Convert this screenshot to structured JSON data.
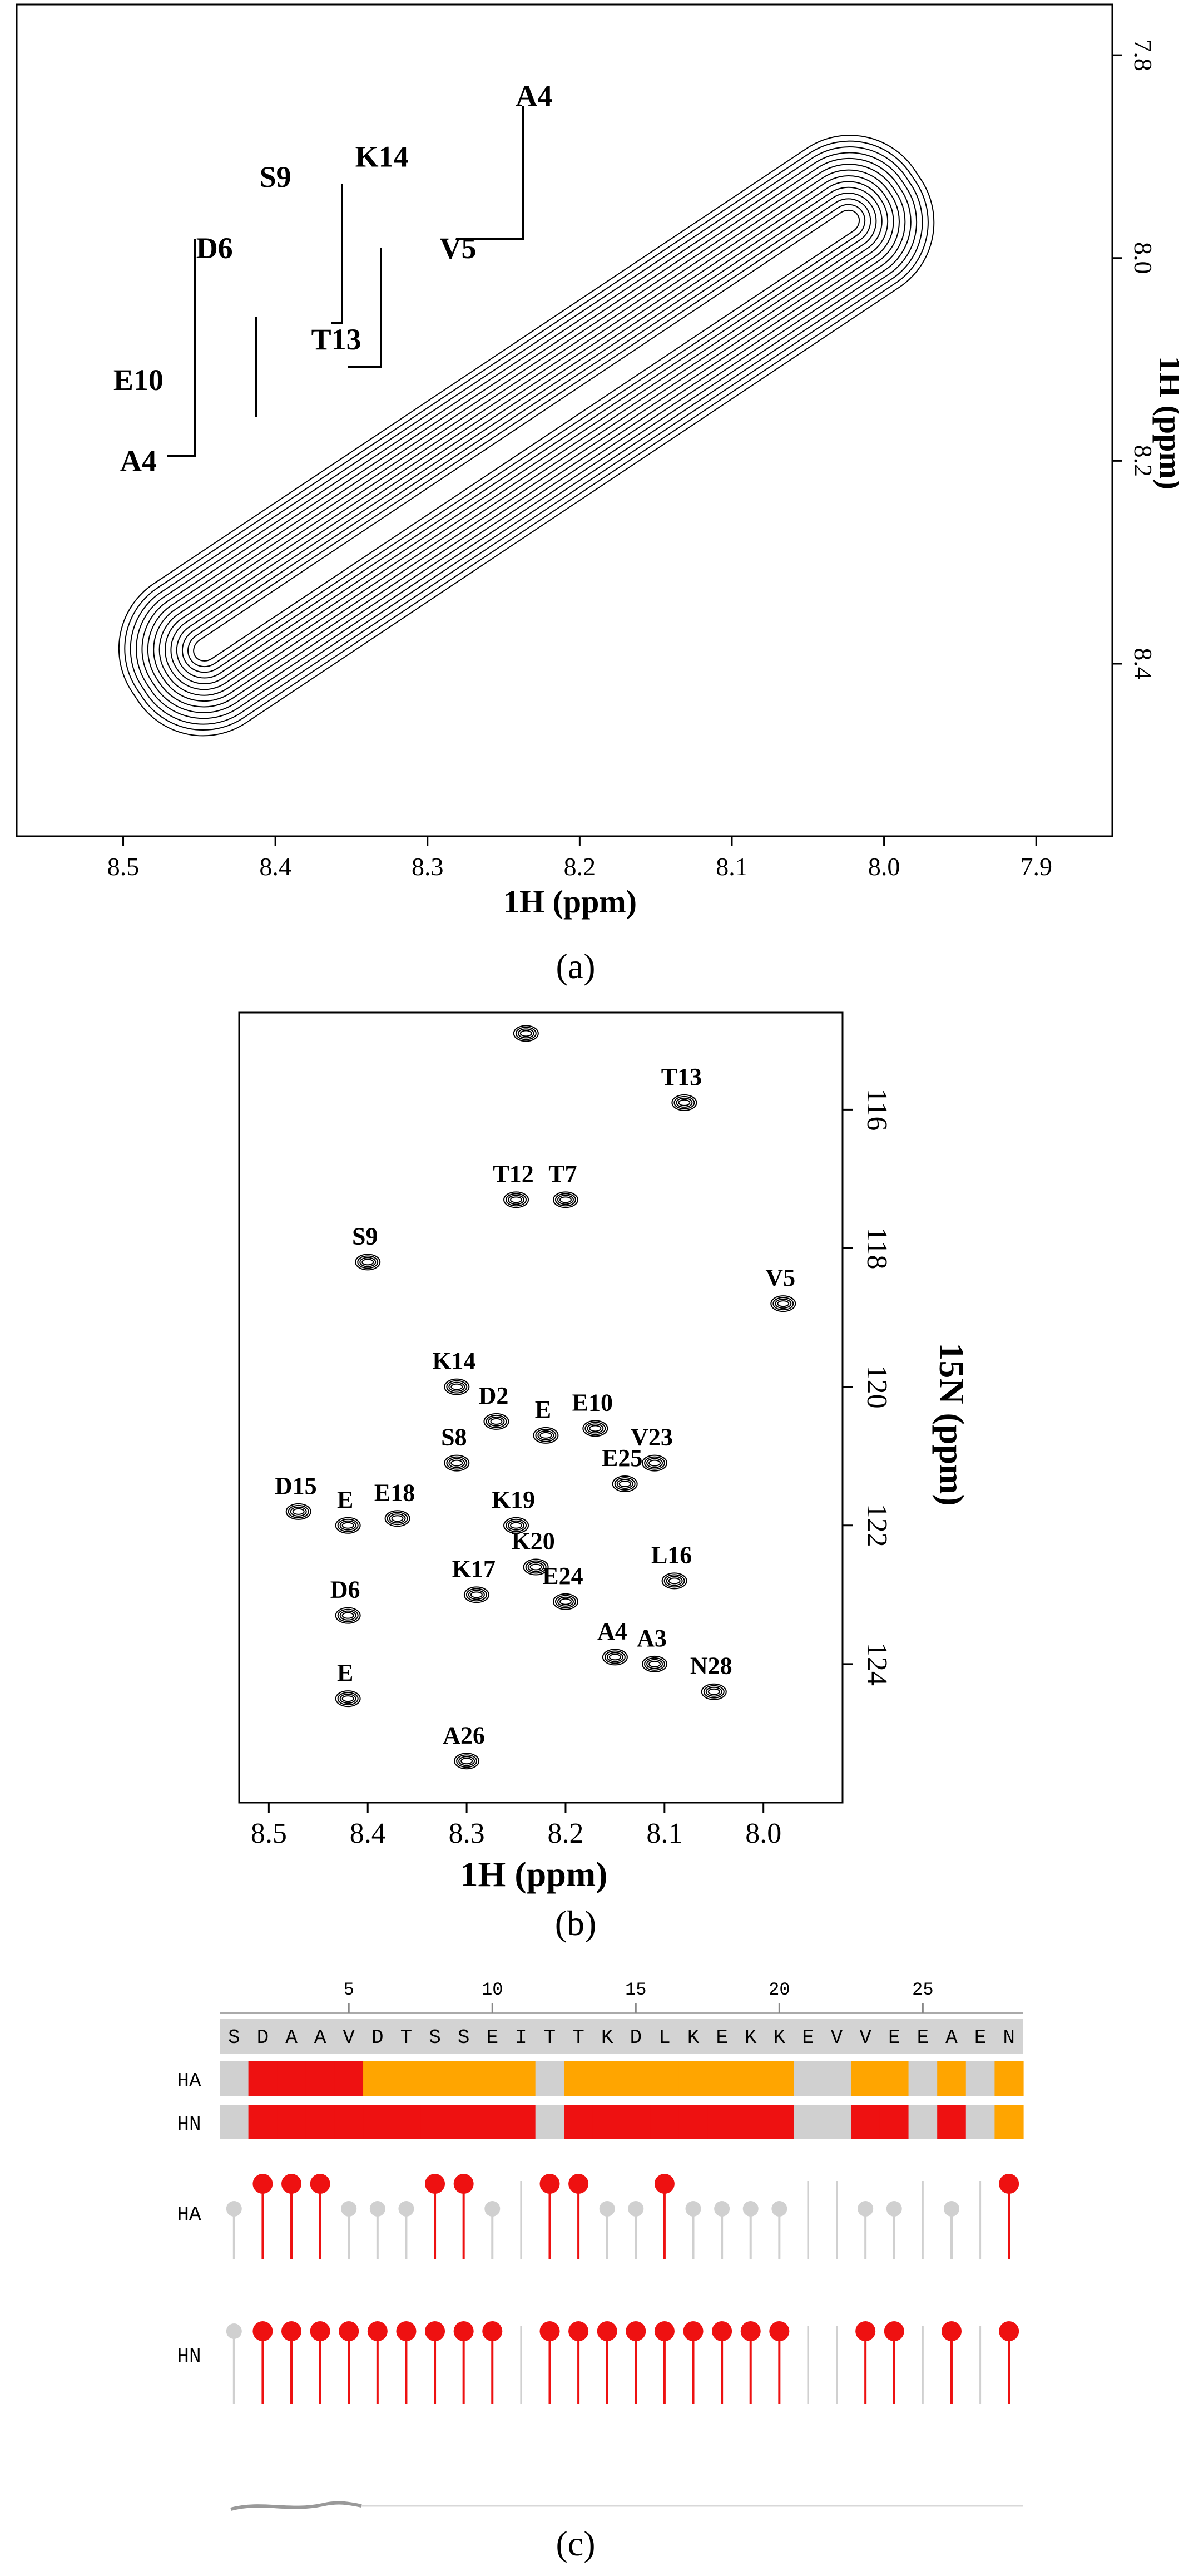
{
  "panel_a": {
    "xlabel": "1H (ppm)",
    "ylabel": "1H (ppm)",
    "x_ticks": [
      8.5,
      8.4,
      8.3,
      8.2,
      8.1,
      8.0,
      7.9
    ],
    "y_ticks": [
      7.8,
      8.0,
      8.2,
      8.4
    ],
    "x_range": [
      8.57,
      7.85
    ],
    "y_range": [
      7.75,
      8.57
    ],
    "labels": [
      {
        "text": "A4",
        "x": 8.23,
        "y": 7.85
      },
      {
        "text": "V5",
        "x": 8.28,
        "y": 8.0
      },
      {
        "text": "K14",
        "x": 8.33,
        "y": 7.91
      },
      {
        "text": "T13",
        "x": 8.36,
        "y": 8.09
      },
      {
        "text": "S9",
        "x": 8.4,
        "y": 7.93
      },
      {
        "text": "D6",
        "x": 8.44,
        "y": 8.0
      },
      {
        "text": "E10",
        "x": 8.49,
        "y": 8.13
      },
      {
        "text": "A4",
        "x": 8.49,
        "y": 8.21
      }
    ],
    "caption": "(a)"
  },
  "panel_b": {
    "xlabel": "1H (ppm)",
    "ylabel": "15N (ppm)",
    "x_ticks": [
      8.5,
      8.4,
      8.3,
      8.2,
      8.1,
      8.0
    ],
    "y_ticks": [
      116,
      118,
      120,
      122,
      124
    ],
    "x_range": [
      8.53,
      7.92
    ],
    "y_range": [
      114.6,
      126.0
    ],
    "peaks": [
      {
        "label": "",
        "x": 8.24,
        "y": 114.9
      },
      {
        "label": "T13",
        "x": 8.08,
        "y": 115.9
      },
      {
        "label": "T12",
        "x": 8.25,
        "y": 117.3
      },
      {
        "label": "T7",
        "x": 8.2,
        "y": 117.3
      },
      {
        "label": "S9",
        "x": 8.4,
        "y": 118.2
      },
      {
        "label": "V5",
        "x": 7.98,
        "y": 118.8
      },
      {
        "label": "K14",
        "x": 8.31,
        "y": 120.0
      },
      {
        "label": "D2",
        "x": 8.27,
        "y": 120.5
      },
      {
        "label": "E",
        "x": 8.22,
        "y": 120.7
      },
      {
        "label": "E10",
        "x": 8.17,
        "y": 120.6
      },
      {
        "label": "E25",
        "x": 8.14,
        "y": 121.4
      },
      {
        "label": "V23",
        "x": 8.11,
        "y": 121.1
      },
      {
        "label": "S8",
        "x": 8.31,
        "y": 121.1
      },
      {
        "label": "D15",
        "x": 8.47,
        "y": 121.8
      },
      {
        "label": "E",
        "x": 8.42,
        "y": 122.0
      },
      {
        "label": "E18",
        "x": 8.37,
        "y": 121.9
      },
      {
        "label": "K19",
        "x": 8.25,
        "y": 122.0
      },
      {
        "label": "K20",
        "x": 8.23,
        "y": 122.6
      },
      {
        "label": "L16",
        "x": 8.09,
        "y": 122.8
      },
      {
        "label": "K17",
        "x": 8.29,
        "y": 123.0
      },
      {
        "label": "E24",
        "x": 8.2,
        "y": 123.1
      },
      {
        "label": "D6",
        "x": 8.42,
        "y": 123.3
      },
      {
        "label": "A4",
        "x": 8.15,
        "y": 123.9
      },
      {
        "label": "A3",
        "x": 8.11,
        "y": 124.0
      },
      {
        "label": "N28",
        "x": 8.05,
        "y": 124.4
      },
      {
        "label": "E",
        "x": 8.42,
        "y": 124.5
      },
      {
        "label": "A26",
        "x": 8.3,
        "y": 125.4
      }
    ],
    "caption": "(b)"
  },
  "panel_c": {
    "sequence": [
      "S",
      "D",
      "A",
      "A",
      "V",
      "D",
      "T",
      "S",
      "S",
      "E",
      "I",
      "T",
      "T",
      "K",
      "D",
      "L",
      "K",
      "E",
      "K",
      "K",
      "E",
      "V",
      "V",
      "E",
      "E",
      "A",
      "E",
      "N"
    ],
    "ruler_ticks": [
      "5",
      "10",
      "15",
      "20",
      "25"
    ],
    "row_labels": [
      "HA",
      "HN",
      "HA",
      "HN"
    ],
    "ha_bar": [
      "gray",
      "red",
      "red",
      "red",
      "red",
      "orange",
      "orange",
      "orange",
      "orange",
      "orange",
      "orange",
      "gray",
      "orange",
      "orange",
      "orange",
      "orange",
      "orange",
      "orange",
      "orange",
      "orange",
      "gray",
      "gray",
      "orange",
      "orange",
      "gray",
      "orange",
      "gray",
      "orange"
    ],
    "hn_bar": [
      "gray",
      "red",
      "red",
      "red",
      "red",
      "red",
      "red",
      "red",
      "red",
      "red",
      "red",
      "gray",
      "red",
      "red",
      "red",
      "red",
      "red",
      "red",
      "red",
      "red",
      "gray",
      "gray",
      "red",
      "red",
      "gray",
      "red",
      "gray",
      "orange"
    ],
    "ha_lollipops": [
      "gray",
      "red",
      "red",
      "red",
      "gray",
      "gray",
      "gray",
      "red",
      "red",
      "gray",
      "none",
      "red",
      "red",
      "gray",
      "gray",
      "red",
      "gray",
      "gray",
      "gray",
      "gray",
      "none",
      "none",
      "gray",
      "gray",
      "none",
      "gray",
      "none",
      "red"
    ],
    "hn_lollipops": [
      "gray",
      "red",
      "red",
      "red",
      "red",
      "red",
      "red",
      "red",
      "red",
      "red",
      "none",
      "red",
      "red",
      "red",
      "red",
      "red",
      "red",
      "red",
      "red",
      "red",
      "none",
      "none",
      "red",
      "red",
      "none",
      "red",
      "none",
      "red"
    ],
    "colors": {
      "red": "#ee1111",
      "orange": "#ffa500",
      "gray": "#d0d0d0",
      "header": "#d3d3d3"
    },
    "caption": "(c)"
  }
}
